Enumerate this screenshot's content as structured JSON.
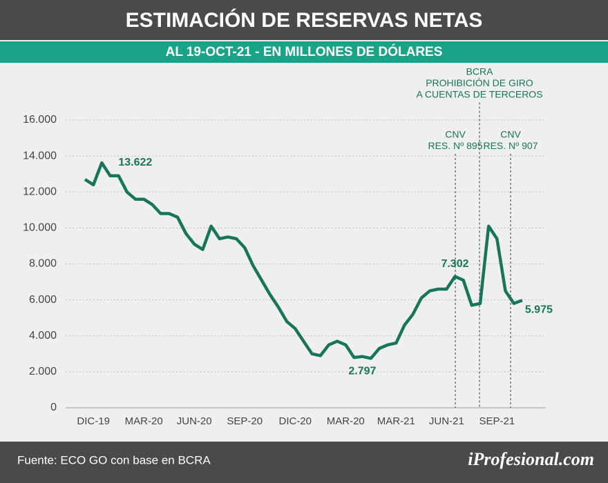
{
  "chart_data": {
    "type": "line",
    "title": "ESTIMACIÓN DE RESERVAS NETAS",
    "subtitle": "AL 19-OCT-21 - EN MILLONES DE DÓLARES",
    "categories": [
      null,
      "DIC-19",
      null,
      null,
      null,
      null,
      null,
      "MAR-20",
      null,
      null,
      null,
      null,
      null,
      "JUN-20",
      null,
      null,
      null,
      null,
      null,
      "SEP-20",
      null,
      null,
      null,
      null,
      null,
      "DIC-20",
      null,
      null,
      null,
      null,
      null,
      "MAR-20",
      null,
      null,
      null,
      null,
      null,
      "MAR-21",
      null,
      null,
      null,
      null,
      null,
      "JUN-21",
      null,
      null,
      null,
      null,
      null,
      "SEP-21",
      null,
      null,
      null
    ],
    "series": [
      {
        "name": "Reservas netas",
        "color": "#16755a",
        "values": [
          12700,
          12400,
          13622,
          12900,
          12900,
          12000,
          11600,
          11600,
          11300,
          10800,
          10800,
          10600,
          9700,
          9100,
          8800,
          10100,
          9400,
          9500,
          9400,
          8900,
          7900,
          7100,
          6300,
          5600,
          4800,
          4400,
          3700,
          3000,
          2900,
          3500,
          3700,
          3500,
          2797,
          2850,
          2750,
          3300,
          3500,
          3600,
          4600,
          5200,
          6100,
          6500,
          6600,
          6600,
          7302,
          7100,
          5700,
          5800,
          10100,
          9400,
          6500,
          5800,
          5975
        ],
        "value_labels": [
          null,
          null,
          "13.622",
          null,
          null,
          null,
          null,
          null,
          null,
          null,
          null,
          null,
          null,
          null,
          null,
          null,
          null,
          null,
          null,
          null,
          null,
          null,
          null,
          null,
          null,
          null,
          null,
          null,
          null,
          null,
          null,
          null,
          "2.797",
          null,
          null,
          null,
          null,
          null,
          null,
          null,
          null,
          null,
          null,
          null,
          "7.302",
          null,
          null,
          null,
          null,
          null,
          null,
          null,
          "5.975"
        ]
      }
    ],
    "ylim": [
      0,
      16000
    ],
    "yticks": [
      0,
      {
        "value": 2000,
        "label": "2.000"
      },
      {
        "value": 4000,
        "label": "4.000"
      },
      {
        "value": 6000,
        "label": "6.000"
      },
      {
        "value": 8000,
        "label": "8.000"
      },
      {
        "value": 10000,
        "label": "10.000"
      },
      {
        "value": 12000,
        "label": "12.000"
      },
      {
        "value": 14000,
        "label": "14.000"
      },
      {
        "value": 16000,
        "label": "16.000"
      }
    ],
    "grid": true,
    "annotations": [
      [
        "CNV",
        "RES. Nº 895"
      ],
      [
        "BCRA",
        "PROHIBICIÓN DE GIRO",
        "A CUENTAS DE TERCEROS"
      ],
      [
        "CNV",
        "RES. Nº 907"
      ]
    ],
    "source": "Fuente: ECO GO con base en BCRA",
    "brand": "iProfesional.com"
  }
}
